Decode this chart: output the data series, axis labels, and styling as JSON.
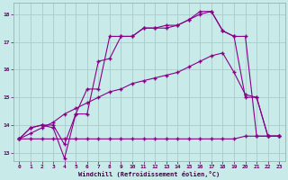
{
  "title": "",
  "xlabel": "Windchill (Refroidissement éolien,°C)",
  "bg_color": "#c8eae8",
  "grid_color": "#aacccc",
  "line_color": "#880088",
  "xlim": [
    -0.5,
    23.5
  ],
  "ylim": [
    12.7,
    18.4
  ],
  "xticks": [
    0,
    1,
    2,
    3,
    4,
    5,
    6,
    7,
    8,
    9,
    10,
    11,
    12,
    13,
    14,
    15,
    16,
    17,
    18,
    19,
    20,
    21,
    22,
    23
  ],
  "yticks": [
    13,
    14,
    15,
    16,
    17,
    18
  ],
  "line1_x": [
    0,
    1,
    2,
    3,
    4,
    5,
    6,
    7,
    8,
    9,
    10,
    11,
    12,
    13,
    14,
    15,
    16,
    17,
    18,
    19,
    20,
    21,
    22,
    23
  ],
  "line1_y": [
    13.5,
    13.5,
    13.5,
    13.5,
    13.5,
    13.5,
    13.5,
    13.5,
    13.5,
    13.5,
    13.5,
    13.5,
    13.5,
    13.5,
    13.5,
    13.5,
    13.5,
    13.5,
    13.5,
    13.5,
    13.6,
    13.6,
    13.6,
    13.6
  ],
  "line2_x": [
    0,
    1,
    2,
    3,
    4,
    5,
    6,
    7,
    8,
    9,
    10,
    11,
    12,
    13,
    14,
    15,
    16,
    17,
    18,
    19,
    20,
    21,
    22,
    23
  ],
  "line2_y": [
    13.5,
    13.7,
    13.9,
    14.1,
    14.4,
    14.6,
    14.8,
    15.0,
    15.2,
    15.3,
    15.5,
    15.6,
    15.7,
    15.8,
    15.9,
    16.1,
    16.3,
    16.5,
    16.6,
    15.9,
    15.1,
    15.0,
    13.6,
    13.6
  ],
  "line3_x": [
    0,
    1,
    2,
    3,
    4,
    5,
    6,
    7,
    8,
    9,
    10,
    11,
    12,
    13,
    14,
    15,
    16,
    17,
    18,
    19,
    20,
    21,
    22,
    23
  ],
  "line3_y": [
    13.5,
    13.9,
    14.0,
    13.9,
    12.8,
    14.4,
    14.4,
    16.3,
    16.4,
    17.2,
    17.2,
    17.5,
    17.5,
    17.5,
    17.6,
    17.8,
    18.0,
    18.1,
    17.4,
    17.2,
    15.0,
    15.0,
    13.6,
    13.6
  ],
  "line4_x": [
    0,
    1,
    2,
    3,
    4,
    5,
    6,
    7,
    8,
    9,
    10,
    11,
    12,
    13,
    14,
    15,
    16,
    17,
    18,
    19,
    20,
    21,
    22,
    23
  ],
  "line4_y": [
    13.5,
    13.9,
    14.0,
    14.0,
    13.3,
    14.4,
    15.3,
    15.3,
    17.2,
    17.2,
    17.2,
    17.5,
    17.5,
    17.6,
    17.6,
    17.8,
    18.1,
    18.1,
    17.4,
    17.2,
    17.2,
    13.6,
    13.6,
    13.6
  ]
}
